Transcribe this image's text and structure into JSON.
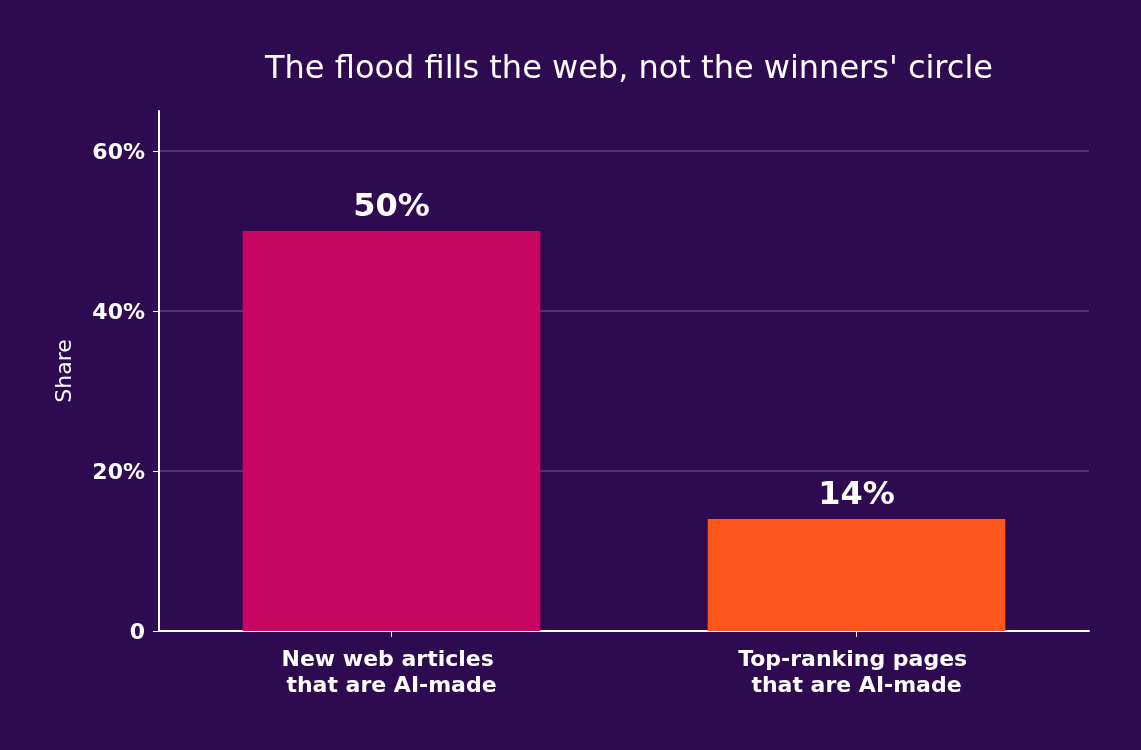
{
  "chart_data": {
    "type": "bar",
    "title": "The flood fills the web, not the winners' circle",
    "ylabel": "Share",
    "categories": [
      "New web articles that are AI-made",
      "Top-ranking pages that are AI-made"
    ],
    "values": [
      50,
      14
    ],
    "colors": [
      "#c70662",
      "#ff561e"
    ],
    "value_labels": [
      "50%",
      "14%"
    ],
    "ylim": [
      0,
      65
    ],
    "yticks": [
      0,
      {
        "value": 20,
        "label": "20%"
      },
      {
        "value": 40,
        "label": "40%"
      },
      {
        "value": 60,
        "label": "60%"
      }
    ],
    "grid": "y"
  }
}
